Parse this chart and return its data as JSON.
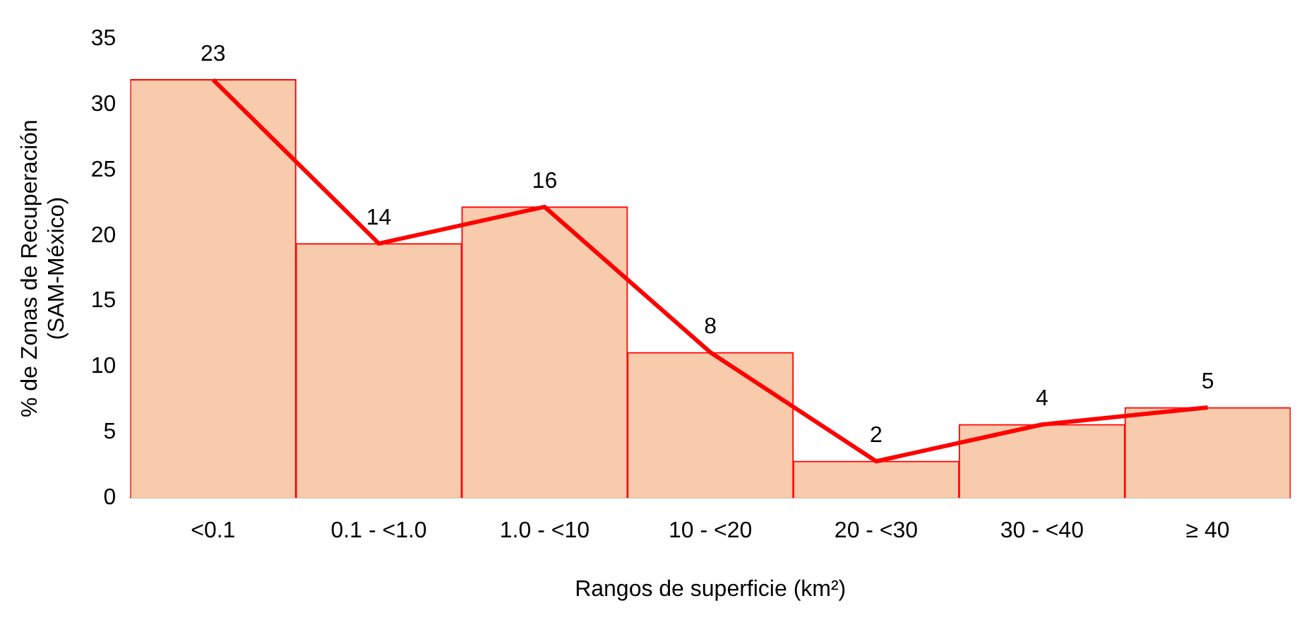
{
  "chart_data": {
    "type": "bar",
    "xlabel": "Rangos de superficie (km²)",
    "ylabel": "% de Zonas de Recuperación\n(SAM-México)",
    "categories": [
      "<0.1",
      "0.1 - <1.0",
      "1.0 - <10",
      "10 - <20",
      "20 - <30",
      "30 - <40",
      "≥ 40"
    ],
    "series": [
      {
        "color": "#f8cbad",
        "values": [
          31.9,
          19.4,
          22.2,
          11.1,
          2.8,
          5.6,
          6.9
        ]
      },
      {
        "type": "line",
        "color": "#ff0000",
        "values": [
          31.9,
          19.4,
          22.2,
          11.1,
          2.8,
          5.6,
          6.9
        ]
      }
    ],
    "annotations": [
      {
        "text": "23",
        "x": "<0.1",
        "y": 31.9
      },
      {
        "text": "14",
        "x": "0.1 - <1.0",
        "y": 19.4
      },
      {
        "text": "16",
        "x": "1.0 - <10",
        "y": 22.2
      },
      {
        "text": "8",
        "x": "10 - <20",
        "y": 11.1
      },
      {
        "text": "2",
        "x": "20 - <30",
        "y": 2.8
      },
      {
        "text": "4",
        "x": "30 - <40",
        "y": 5.6
      },
      {
        "text": "5",
        "x": "≥ 40",
        "y": 6.9
      }
    ],
    "ylim": [
      0,
      35
    ],
    "yticks": [
      0,
      5,
      10,
      15,
      20,
      25,
      30,
      35
    ],
    "grid": false,
    "legend": false,
    "marker": "none",
    "line_style": "solid"
  }
}
